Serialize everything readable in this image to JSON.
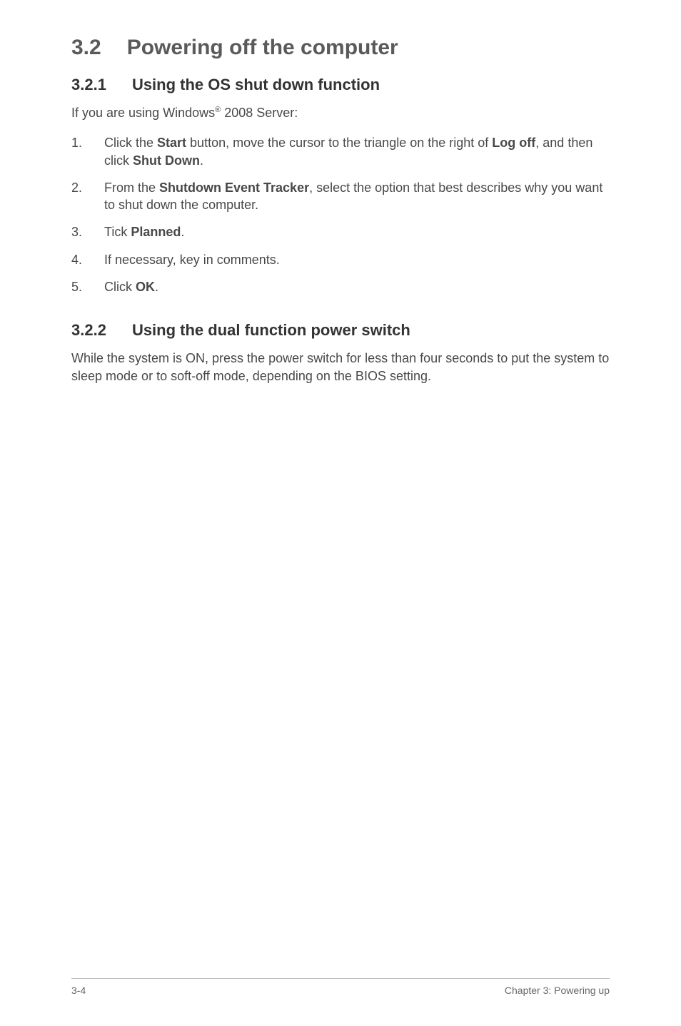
{
  "section": {
    "number": "3.2",
    "title": "Powering off the computer"
  },
  "sub1": {
    "number": "3.2.1",
    "title": "Using the OS shut down function",
    "intro_pre": "If you are using Windows",
    "intro_sup": "®",
    "intro_post": " 2008 Server:",
    "items": [
      {
        "n": "1.",
        "parts": [
          {
            "t": "Click the ",
            "b": false
          },
          {
            "t": "Start",
            "b": true
          },
          {
            "t": " button, move the cursor to the triangle on the right of ",
            "b": false
          },
          {
            "t": "Log off",
            "b": true
          },
          {
            "t": ", and then click ",
            "b": false
          },
          {
            "t": "Shut Down",
            "b": true
          },
          {
            "t": ".",
            "b": false
          }
        ]
      },
      {
        "n": "2.",
        "parts": [
          {
            "t": "From the ",
            "b": false
          },
          {
            "t": "Shutdown Event Tracker",
            "b": true
          },
          {
            "t": ", select the option that best describes why you want to shut down the computer.",
            "b": false
          }
        ]
      },
      {
        "n": "3.",
        "parts": [
          {
            "t": "Tick ",
            "b": false
          },
          {
            "t": "Planned",
            "b": true
          },
          {
            "t": ".",
            "b": false
          }
        ]
      },
      {
        "n": "4.",
        "parts": [
          {
            "t": "If necessary, key in comments.",
            "b": false
          }
        ]
      },
      {
        "n": "5.",
        "parts": [
          {
            "t": "Click ",
            "b": false
          },
          {
            "t": "OK",
            "b": true
          },
          {
            "t": ".",
            "b": false
          }
        ]
      }
    ]
  },
  "sub2": {
    "number": "3.2.2",
    "title": "Using the dual function power switch",
    "body": "While the system is ON, press the power switch for less than four seconds to put the system to sleep mode or to soft-off mode, depending on the BIOS setting."
  },
  "footer": {
    "left": "3-4",
    "right": "Chapter 3: Powering up"
  }
}
